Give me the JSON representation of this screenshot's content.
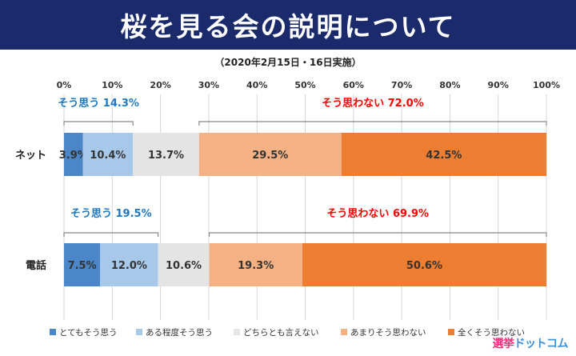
{
  "header": {
    "title": "桜を見る会の説明について",
    "subtitle": "（2020年2月15日・16日実施）"
  },
  "logo": {
    "part1": "選挙",
    "part2": "ドットコム"
  },
  "chart_data": {
    "type": "bar",
    "orientation": "horizontal",
    "stacked": true,
    "xlim": [
      0,
      100
    ],
    "x_ticks": [
      "0%",
      "10%",
      "20%",
      "30%",
      "40%",
      "50%",
      "60%",
      "70%",
      "80%",
      "90%",
      "100%"
    ],
    "categories": [
      "ネット",
      "電話"
    ],
    "series": [
      {
        "name": "とてもそう思う",
        "values": [
          3.9,
          7.5
        ],
        "labels": [
          "3.9%",
          "7.5%"
        ],
        "color": "#4a86c8"
      },
      {
        "name": "ある程度そう思う",
        "values": [
          10.4,
          12.0
        ],
        "labels": [
          "10.4%",
          "12.0%"
        ],
        "color": "#a8c8ea"
      },
      {
        "name": "どちらとも言えない",
        "values": [
          13.7,
          10.6
        ],
        "labels": [
          "13.7%",
          "10.6%"
        ],
        "color": "#e4e4e4"
      },
      {
        "name": "あまりそう思わない",
        "values": [
          29.5,
          19.3
        ],
        "labels": [
          "29.5%",
          "19.3%"
        ],
        "color": "#f4b183"
      },
      {
        "name": "全くそう思わない",
        "values": [
          42.5,
          50.6
        ],
        "labels": [
          "42.5%",
          "50.6%"
        ],
        "color": "#ed7d31"
      }
    ],
    "annotations": [
      {
        "category": "ネット",
        "text": "そう思う 14.3%",
        "from": 0,
        "to": 14.3,
        "color": "#1f78c1"
      },
      {
        "category": "ネット",
        "text": "そう思わない 72.0%",
        "from": 28.0,
        "to": 100,
        "color": "#ff0000"
      },
      {
        "category": "電話",
        "text": "そう思う 19.5%",
        "from": 0,
        "to": 19.5,
        "color": "#1f78c1"
      },
      {
        "category": "電話",
        "text": "そう思わない 69.9%",
        "from": 30.1,
        "to": 100,
        "color": "#ff0000"
      }
    ],
    "legend_position": "bottom",
    "grid": true
  }
}
